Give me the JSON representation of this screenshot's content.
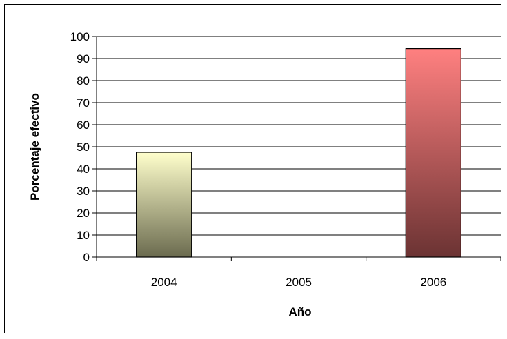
{
  "chart_data": {
    "type": "bar",
    "title": "",
    "xlabel": "Año",
    "ylabel": "Porcentaje efectivo",
    "categories": [
      "2004",
      "2005",
      "2006"
    ],
    "values": [
      47.5,
      0,
      94.5
    ],
    "ylim": [
      0,
      100
    ],
    "yticks": [
      "0",
      "10",
      "20",
      "30",
      "40",
      "50",
      "60",
      "70",
      "80",
      "90",
      "100"
    ],
    "grid": true,
    "legend": "none",
    "bar_gradients": [
      [
        "#ffffcc",
        "#6b6b4f"
      ],
      [
        "#ffffff",
        "#ffffff"
      ],
      [
        "#ff8080",
        "#6b3333"
      ]
    ]
  }
}
